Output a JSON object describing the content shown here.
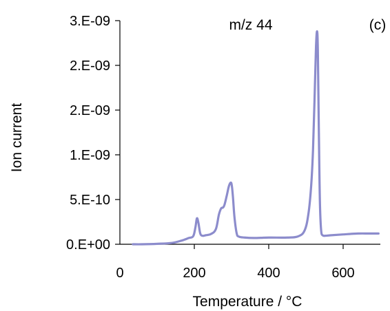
{
  "chart_data": {
    "type": "line",
    "title": "",
    "xlabel": "Temperature / °C",
    "ylabel": "Ion current",
    "xlim": [
      0,
      700
    ],
    "ylim": [
      0,
      2.5e-09
    ],
    "x_ticks": [
      {
        "value": 200,
        "label": "200"
      },
      {
        "value": 400,
        "label": "400"
      },
      {
        "value": 600,
        "label": "600"
      }
    ],
    "x_origin_label": {
      "value": 0,
      "label": "0"
    },
    "y_ticks": [
      {
        "value": 0,
        "label": "0.E+00"
      },
      {
        "value": 5e-10,
        "label": "5.E-10"
      },
      {
        "value": 1e-09,
        "label": "1.E-09"
      },
      {
        "value": 1.5e-09,
        "label": "2.E-09"
      },
      {
        "value": 2e-09,
        "label": "2.E-09"
      },
      {
        "value": 2.5e-09,
        "label": "3.E-09"
      }
    ],
    "grid": false,
    "annotations": [
      "m/z 44",
      "(c)"
    ],
    "line_color": "#8c8ccc",
    "series": [
      {
        "x": [
          35,
          60,
          100,
          140,
          165,
          185,
          197,
          203,
          207,
          211,
          216,
          222,
          230,
          245,
          258,
          266,
          272,
          277,
          281,
          287,
          293,
          298,
          301,
          304,
          308,
          314,
          320,
          335,
          360,
          400,
          450,
          480,
          497,
          507,
          514,
          519,
          523,
          527,
          530,
          532,
          534,
          536,
          538,
          541,
          545,
          552,
          565,
          600,
          640,
          670,
          695
        ],
        "y": [
          0,
          0,
          5e-12,
          1.5e-11,
          4e-11,
          7e-11,
          9e-11,
          1.9e-10,
          2.9e-10,
          2.4e-10,
          1.2e-10,
          9.5e-11,
          1e-10,
          1.15e-10,
          1.7e-10,
          3.3e-10,
          4e-10,
          4.1e-10,
          4.4e-10,
          5.4e-10,
          6.5e-10,
          6.9e-10,
          6.5e-10,
          5.2e-10,
          3e-10,
          1.2e-10,
          8.5e-11,
          7.5e-11,
          7e-11,
          7.5e-11,
          7.5e-11,
          9e-11,
          1.6e-10,
          3.5e-10,
          6.5e-10,
          1.05e-09,
          1.6e-09,
          2.2e-09,
          2.38e-09,
          2.17e-09,
          1.5e-09,
          8.5e-10,
          4e-10,
          1.5e-10,
          1e-10,
          9.5e-11,
          1e-10,
          1.1e-10,
          1.2e-10,
          1.2e-10,
          1.2e-10
        ]
      }
    ]
  }
}
